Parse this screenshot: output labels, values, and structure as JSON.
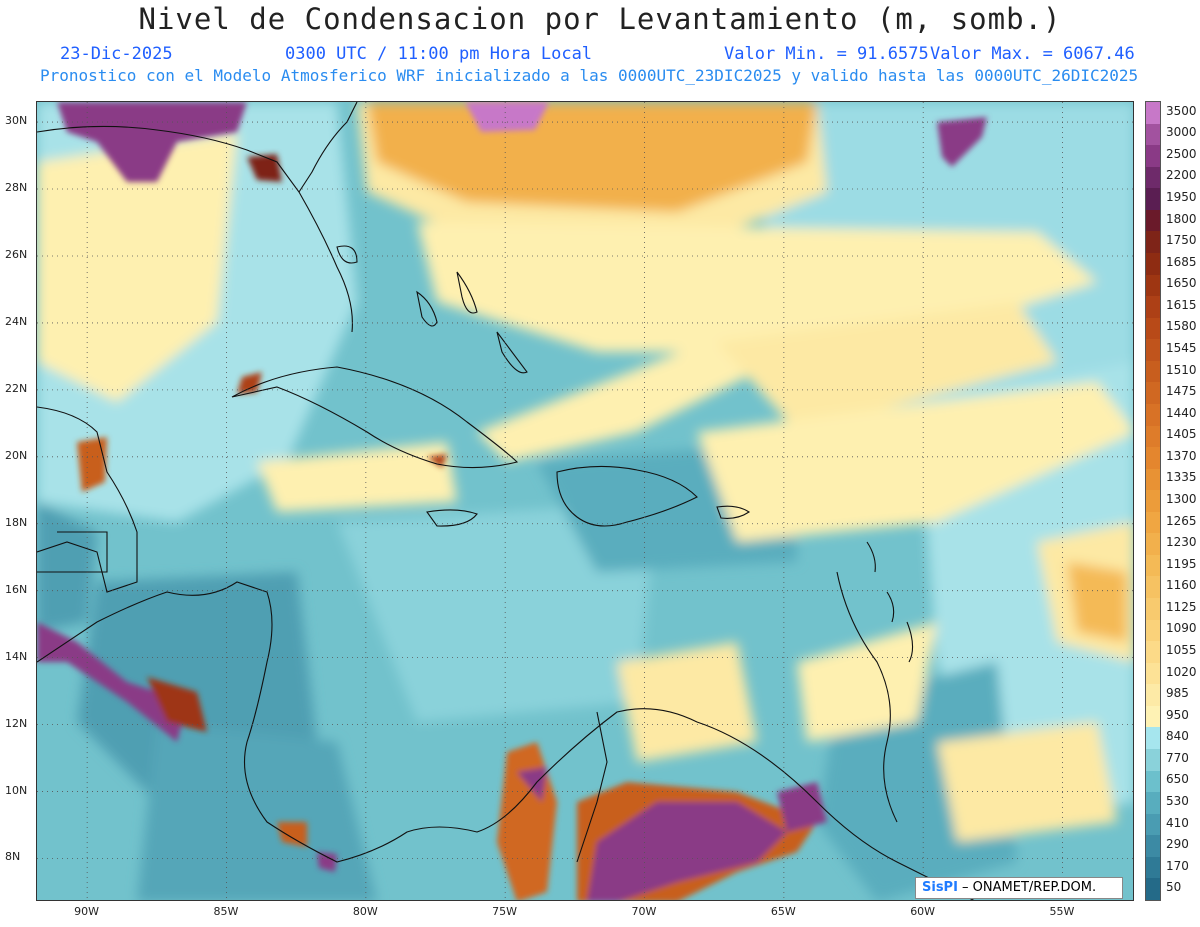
{
  "header": {
    "title": "Nivel de Condensacion por Levantamiento (m, somb.)",
    "date": "23-Dic-2025",
    "time": "0300 UTC / 11:00 pm Hora Local",
    "min_label": "Valor Min. = 91.6575",
    "max_label": "Valor Max. = 6067.46",
    "model_line": "Pronostico con el Modelo Atmosferico WRF inicializado a las 0000UTC_23DIC2025 y valido hasta las  0000UTC_26DIC2025"
  },
  "map": {
    "lon_labels": [
      "90W",
      "85W",
      "80W",
      "75W",
      "70W",
      "65W",
      "60W",
      "55W"
    ],
    "lon_values": [
      -90,
      -85,
      -80,
      -75,
      -70,
      -65,
      -60,
      -55
    ],
    "lat_labels": [
      "30N",
      "28N",
      "26N",
      "24N",
      "22N",
      "20N",
      "18N",
      "16N",
      "14N",
      "12N",
      "10N",
      "8N"
    ],
    "lat_values": [
      30,
      28,
      26,
      24,
      22,
      20,
      18,
      16,
      14,
      12,
      10,
      8
    ],
    "lon_range": [
      -91.8,
      -52.4
    ],
    "lat_range": [
      6.7,
      30.6
    ],
    "grid": "dotted"
  },
  "colorbar": {
    "levels": [
      "3500",
      "3000",
      "2500",
      "2200",
      "1950",
      "1800",
      "1750",
      "1685",
      "1650",
      "1615",
      "1580",
      "1545",
      "1510",
      "1475",
      "1440",
      "1405",
      "1370",
      "1335",
      "1300",
      "1265",
      "1230",
      "1195",
      "1160",
      "1125",
      "1090",
      "1055",
      "1020",
      "985",
      "950",
      "840",
      "770",
      "650",
      "530",
      "410",
      "290",
      "170",
      "50"
    ],
    "colors": [
      "#c778c8",
      "#a2529f",
      "#8a3a86",
      "#6e2a6a",
      "#5a1e52",
      "#6a1a2a",
      "#7e2418",
      "#8e2c12",
      "#9e3612",
      "#ad4016",
      "#b84a18",
      "#c0541c",
      "#c85e1e",
      "#d06822",
      "#d87226",
      "#de7c2a",
      "#e4862e",
      "#e89234",
      "#ec9c3a",
      "#f0a642",
      "#f2b04c",
      "#f4ba56",
      "#f6c262",
      "#f8ca6e",
      "#fad27a",
      "#fcda88",
      "#fde296",
      "#fdeaa6",
      "#fef2b4",
      "#a6e6ee",
      "#8ad2da",
      "#6cc0cc",
      "#58adbe",
      "#4a9cb2",
      "#3c8aa4",
      "#2f7a96",
      "#246a88"
    ]
  },
  "credit": {
    "logo": "SisPI",
    "text": " – ONAMET/REP.DOM."
  }
}
